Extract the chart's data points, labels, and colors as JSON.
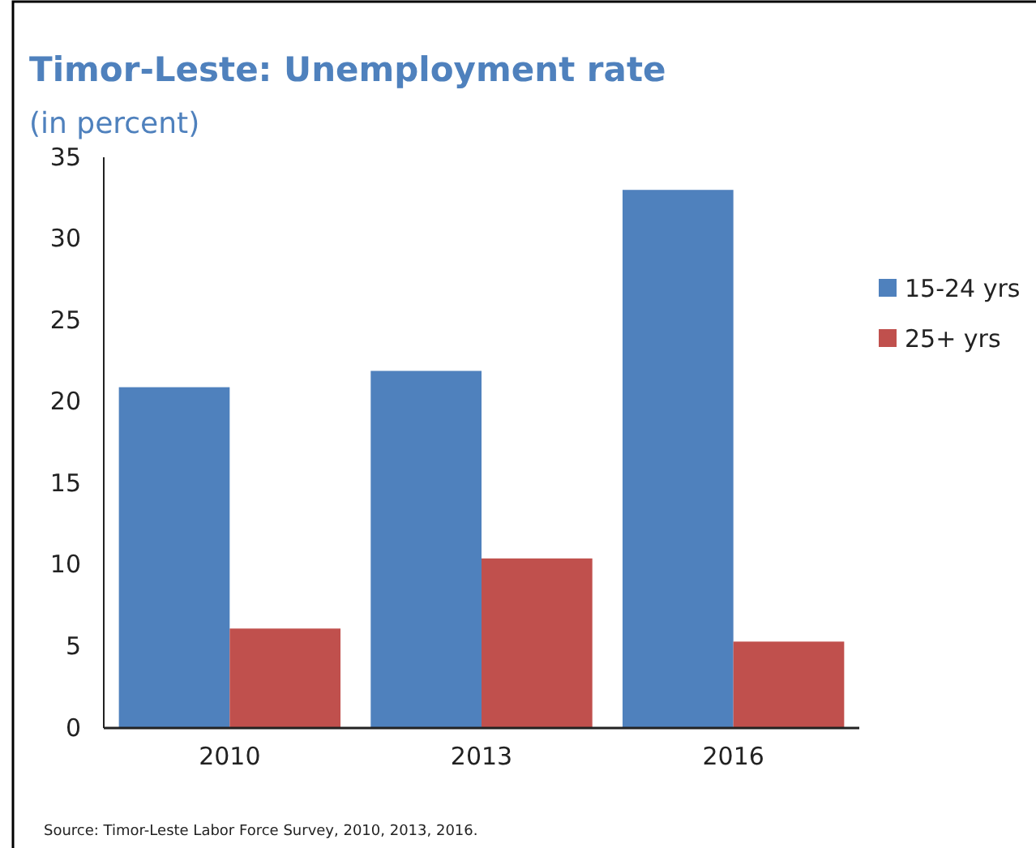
{
  "chart_data": {
    "type": "bar",
    "title": "Timor-Leste: Unemployment rate",
    "subtitle": "(in percent)",
    "categories": [
      "2010",
      "2013",
      "2016"
    ],
    "series": [
      {
        "name": "15-24 yrs",
        "color": "#4f81bd",
        "values": [
          20.9,
          21.9,
          33.0
        ]
      },
      {
        "name": "25+ yrs",
        "color": "#c0504d",
        "values": [
          6.1,
          10.4,
          5.3
        ]
      }
    ],
    "ylim": [
      0,
      35
    ],
    "yticks": [
      0,
      5,
      10,
      15,
      20,
      25,
      30,
      35
    ],
    "grid": false,
    "legend": "right",
    "annotations": [
      "Source: Timor-Leste Labor Force Survey, 2010, 2013, 2016."
    ]
  }
}
